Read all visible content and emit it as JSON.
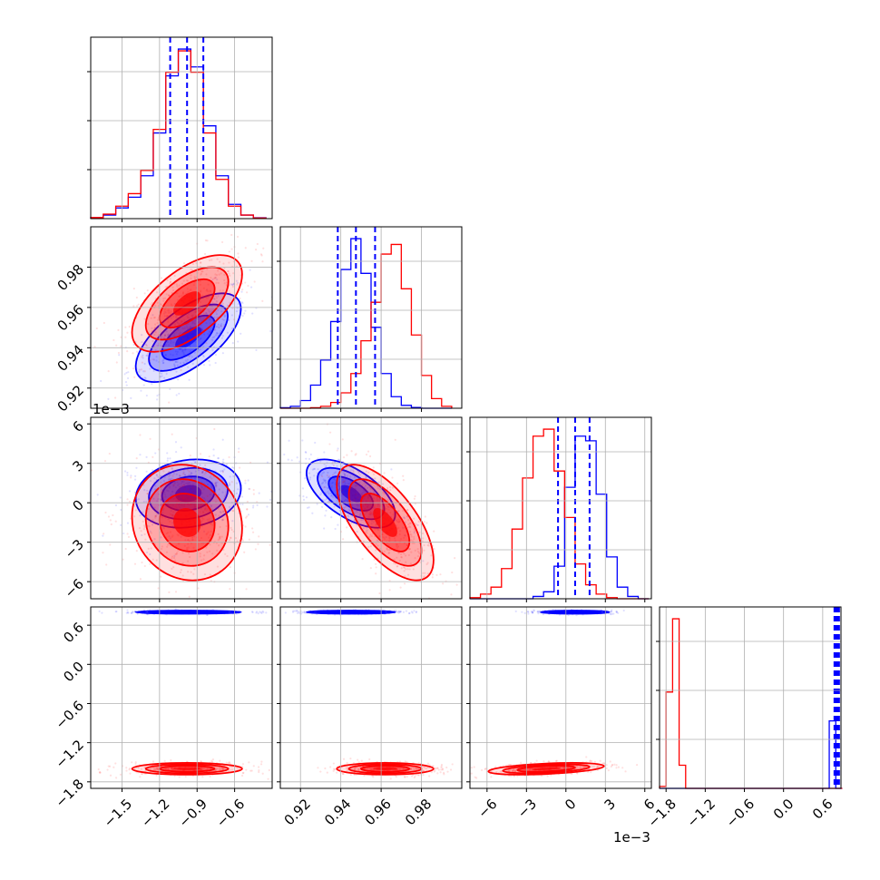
{
  "chart_data": {
    "type": "corner",
    "colors": {
      "series_a": "#0000ff",
      "series_b": "#ff0000",
      "quantile": "#0000ff",
      "grid": "#b0b0b0"
    },
    "multipliers": {
      "p3": "1e−3"
    },
    "params": [
      {
        "key": "p1",
        "range": [
          -1.75,
          -0.3
        ],
        "ticks": [
          -1.5,
          -1.2,
          -0.9,
          -0.6
        ],
        "tick_labels": [
          "−1.5",
          "−1.2",
          "−0.9",
          "−0.6"
        ]
      },
      {
        "key": "p2",
        "range": [
          0.91,
          1.0
        ],
        "ticks": [
          0.92,
          0.94,
          0.96,
          0.98
        ],
        "tick_labels": [
          "0.92",
          "0.94",
          "0.96",
          "0.98"
        ]
      },
      {
        "key": "p3",
        "range": [
          -7.3,
          6.5
        ],
        "ticks": [
          -6,
          -3,
          0,
          3,
          6
        ],
        "tick_labels": [
          "−6",
          "−3",
          "0",
          "3",
          "6"
        ]
      },
      {
        "key": "p4",
        "range": [
          -1.9,
          0.88
        ],
        "ticks": [
          -1.8,
          -1.2,
          -0.6,
          0.0,
          0.6
        ],
        "tick_labels": [
          "−1.8",
          "−1.2",
          "−0.6",
          "0.0",
          "0.6"
        ]
      }
    ],
    "diagonal": [
      {
        "param": "p1",
        "bin_edges": [
          -1.75,
          -1.65,
          -1.55,
          -1.45,
          -1.35,
          -1.25,
          -1.15,
          -1.05,
          -0.95,
          -0.85,
          -0.75,
          -0.65,
          -0.55,
          -0.45,
          -0.35
        ],
        "blue_counts": [
          0.005,
          0.02,
          0.06,
          0.12,
          0.24,
          0.48,
          0.8,
          0.95,
          0.85,
          0.52,
          0.24,
          0.08,
          0.02,
          0.005
        ],
        "red_counts": [
          0.006,
          0.025,
          0.07,
          0.14,
          0.27,
          0.5,
          0.82,
          0.94,
          0.82,
          0.48,
          0.22,
          0.07,
          0.02,
          0.004
        ],
        "quantiles": [
          -1.115,
          -0.98,
          -0.85
        ]
      },
      {
        "param": "p2",
        "bin_edges": [
          0.91,
          0.915,
          0.92,
          0.925,
          0.93,
          0.935,
          0.94,
          0.945,
          0.95,
          0.955,
          0.96,
          0.965,
          0.97,
          0.975,
          0.98,
          0.985,
          0.99,
          0.995
        ],
        "blue_counts": [
          0.003,
          0.01,
          0.04,
          0.12,
          0.25,
          0.45,
          0.72,
          0.88,
          0.7,
          0.42,
          0.18,
          0.06,
          0.015,
          0.004,
          0.0,
          0.0,
          0.0
        ],
        "red_counts": [
          0.0,
          0.0,
          0.0,
          0.003,
          0.01,
          0.03,
          0.08,
          0.18,
          0.35,
          0.55,
          0.8,
          0.85,
          0.62,
          0.38,
          0.17,
          0.05,
          0.01
        ],
        "quantiles": [
          0.9385,
          0.9475,
          0.957
        ]
      },
      {
        "param": "p3",
        "bin_edges": [
          -7.3,
          -6.5,
          -5.7,
          -4.9,
          -4.1,
          -3.3,
          -2.5,
          -1.7,
          -0.9,
          -0.1,
          0.7,
          1.5,
          2.3,
          3.1,
          3.9,
          4.7,
          5.5,
          6.3
        ],
        "blue_counts": [
          0.0,
          0.0,
          0.0,
          0.0,
          0.0,
          0.0,
          0.01,
          0.03,
          0.14,
          0.48,
          0.7,
          0.68,
          0.45,
          0.18,
          0.05,
          0.01,
          0.0
        ],
        "red_counts": [
          0.005,
          0.02,
          0.05,
          0.13,
          0.3,
          0.52,
          0.7,
          0.73,
          0.55,
          0.35,
          0.15,
          0.06,
          0.02,
          0.005,
          0.0,
          0.0,
          0.0
        ],
        "quantiles": [
          -0.6,
          0.7,
          1.8
        ]
      },
      {
        "param": "p4",
        "bin_edges": [
          -1.9,
          -1.8,
          -1.7,
          -1.6,
          -1.5,
          -1.4,
          -1.3,
          -1.2,
          -1.1,
          -1.0,
          -0.9,
          -0.8,
          -0.7,
          -0.6,
          -0.5,
          -0.4,
          -0.3,
          -0.2,
          -0.1,
          0.0,
          0.1,
          0.2,
          0.3,
          0.4,
          0.5,
          0.6,
          0.7,
          0.8,
          0.9
        ],
        "blue_counts": [
          0,
          0,
          0,
          0,
          0,
          0,
          0,
          0,
          0,
          0,
          0,
          0,
          0,
          0,
          0,
          0,
          0,
          0,
          0,
          0,
          0,
          0,
          0,
          0,
          0,
          0,
          0.35,
          0.0
        ],
        "red_counts": [
          0.01,
          0.5,
          0.88,
          0.12,
          0,
          0,
          0,
          0,
          0,
          0,
          0,
          0,
          0,
          0,
          0,
          0,
          0,
          0,
          0,
          0,
          0,
          0,
          0,
          0,
          0,
          0,
          0,
          0
        ],
        "quantiles": [
          0.78,
          0.79,
          0.8,
          0.81,
          0.82,
          0.83,
          0.84,
          0.85
        ]
      }
    ],
    "blue_mean": [
      -0.97,
      0.945,
      0.7,
      0.8
    ],
    "blue_sd": [
      0.21,
      0.011,
      1.3,
      0.012
    ],
    "red_mean": [
      -0.98,
      0.962,
      -1.5,
      -1.6
    ],
    "red_sd": [
      0.22,
      0.012,
      2.2,
      0.045
    ],
    "correlations_blue": {
      "p1_p2": 0.65,
      "p1_p3": 0.15,
      "p2_p3": -0.6,
      "p1_p4": 0.0,
      "p2_p4": 0.0,
      "p3_p4": 0.0
    },
    "correlations_red": {
      "p1_p2": 0.6,
      "p1_p3": -0.1,
      "p2_p3": -0.65,
      "p1_p4": 0.0,
      "p2_p4": 0.0,
      "p3_p4": 0.45
    }
  }
}
